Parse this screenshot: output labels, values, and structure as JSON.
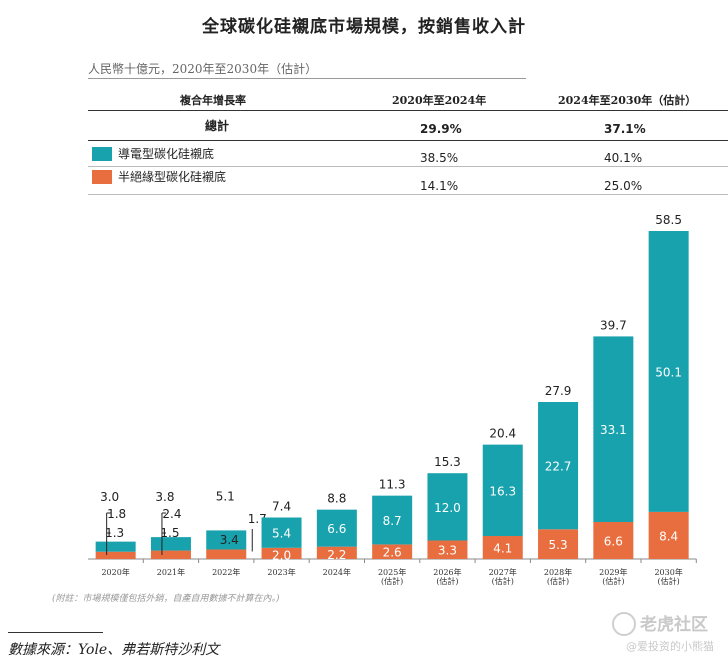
{
  "title": "全球碳化硅襯底市場規模，按銷售收入計",
  "unit_label": "人民幣十億元，2020年至2030年（估計）",
  "cagr_table": {
    "header_label": "複合年增長率",
    "col1": "2020年至2024年",
    "col2": "2024年至2030年（估計）",
    "rows": [
      {
        "label": "總計",
        "v1": "29.9%",
        "v2": "37.1%"
      },
      {
        "label": "導電型碳化硅襯底",
        "v1": "38.5%",
        "v2": "40.1%"
      },
      {
        "label": "半絕緣型碳化硅襯底",
        "v1": "14.1%",
        "v2": "25.0%"
      }
    ]
  },
  "colors": {
    "conductive": "#17a2ad",
    "semi": "#e86e3f"
  },
  "chart_data": {
    "type": "bar",
    "stacked": true,
    "categories": [
      "2020年",
      "2021年",
      "2022年",
      "2023年",
      "2024年",
      "2025年\n(估計)",
      "2026年\n(估計)",
      "2027年\n(估計)",
      "2028年\n(估計)",
      "2029年\n(估計)",
      "2030年\n(估計)"
    ],
    "series": [
      {
        "name": "半絕緣型碳化硅襯底",
        "values": [
          1.3,
          1.5,
          1.7,
          2.0,
          2.2,
          2.6,
          3.3,
          4.1,
          5.3,
          6.6,
          8.4
        ],
        "labels": [
          "1.3",
          "1.5",
          "1.7",
          "2.0",
          "2.2",
          "2.6",
          "3.3",
          "4.1",
          "5.3",
          "6.6",
          "8.4"
        ]
      },
      {
        "name": "導電型碳化硅襯底",
        "values": [
          1.8,
          2.4,
          3.4,
          5.4,
          6.6,
          8.7,
          12.0,
          16.3,
          22.7,
          33.1,
          50.1
        ],
        "labels": [
          "1.8",
          "2.4",
          "3.4",
          "5.4",
          "6.6",
          "8.7",
          "12.0",
          "16.3",
          "22.7",
          "33.1",
          "50.1"
        ]
      }
    ],
    "totals": [
      "3.0",
      "3.8",
      "5.1",
      "7.4",
      "8.8",
      "11.3",
      "15.3",
      "20.4",
      "27.9",
      "39.7",
      "58.5"
    ],
    "ylim": [
      0,
      58.5
    ]
  },
  "footnote": "(附註：市場規模僅包括外銷，自產自用數據不計算在內。)",
  "source": "數據來源：Yole、弗若斯特沙利文",
  "watermark": {
    "line1": "老虎社区",
    "line2": "@爱投资的小熊猫"
  }
}
